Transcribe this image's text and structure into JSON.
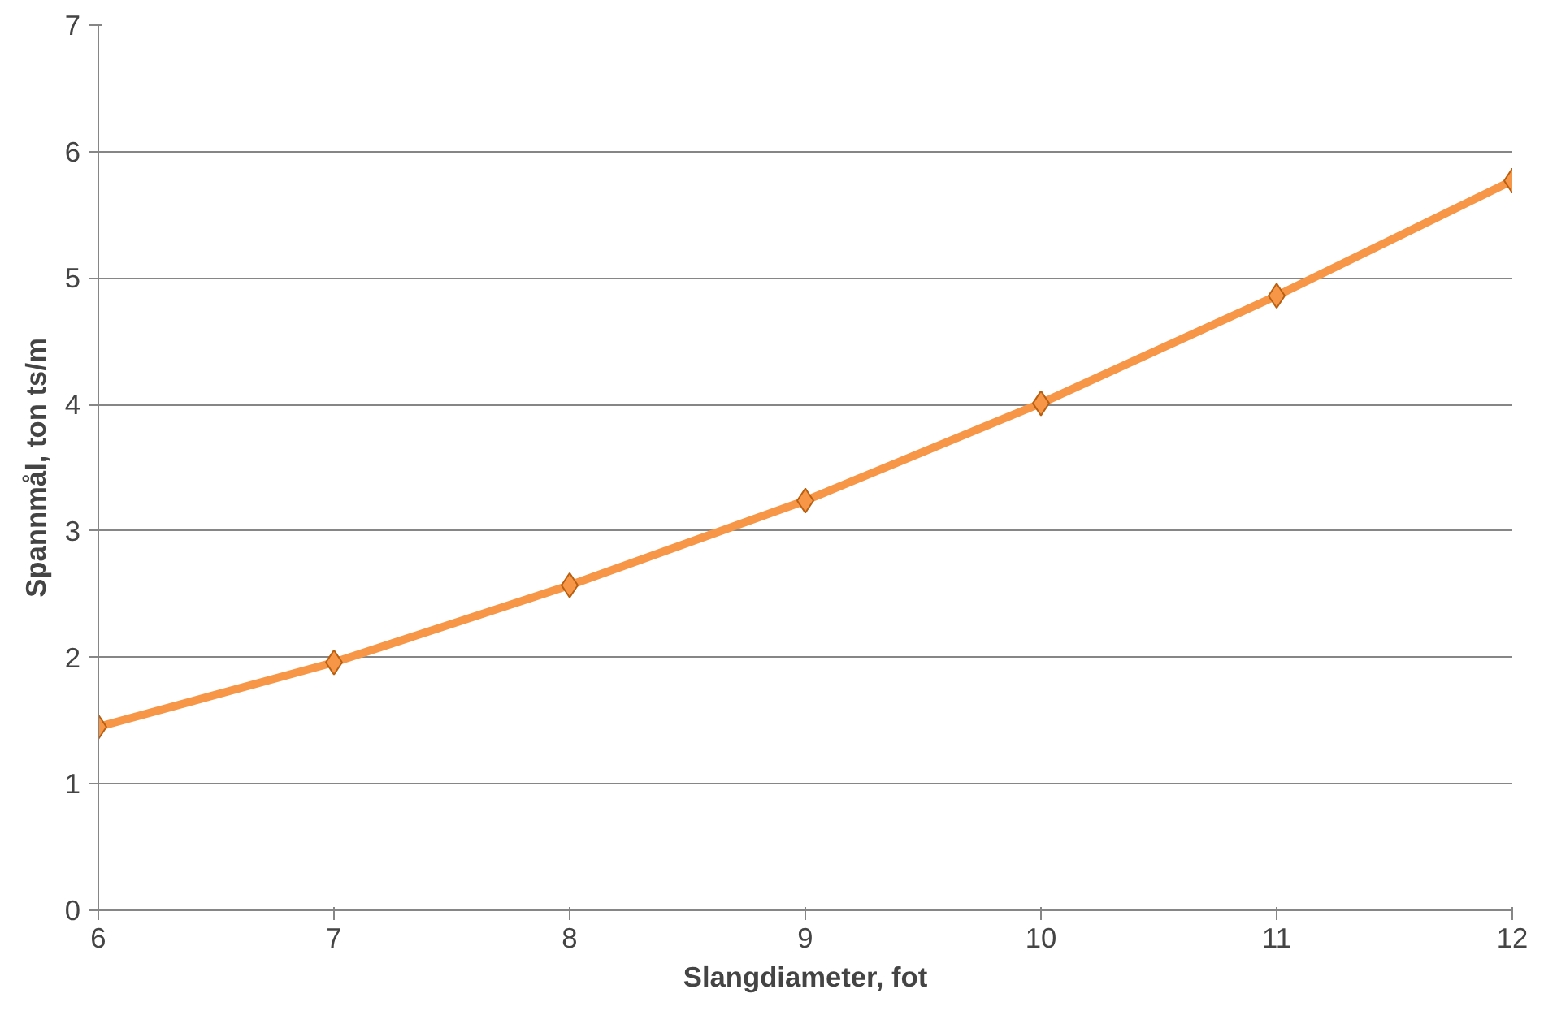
{
  "chart_data": {
    "type": "line",
    "xlabel": "Slangdiameter, fot",
    "ylabel": "Spannmål, ton ts/m",
    "x": [
      6,
      7,
      8,
      9,
      10,
      11,
      12
    ],
    "series": [
      {
        "color": "#f79646",
        "values": [
          1.45,
          1.96,
          2.57,
          3.24,
          4.01,
          4.86,
          5.77
        ]
      }
    ],
    "xlim": [
      6,
      12
    ],
    "xticks": [
      6,
      7,
      8,
      9,
      10,
      11,
      12
    ],
    "ylim": [
      0,
      7
    ],
    "yticks": [
      0,
      1,
      2,
      3,
      4,
      5,
      6,
      7
    ],
    "grid": "y",
    "marker": "diamond",
    "line_style": "solid"
  }
}
